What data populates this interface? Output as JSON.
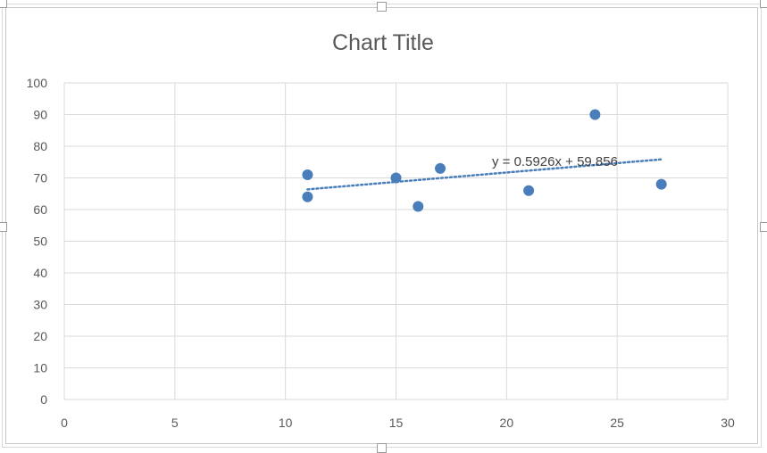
{
  "chart_data": {
    "type": "scatter",
    "title": "Chart Title",
    "xlabel": "",
    "ylabel": "",
    "xlim": [
      0,
      30
    ],
    "ylim": [
      0,
      100
    ],
    "x_ticks": [
      0,
      5,
      10,
      15,
      20,
      25,
      30
    ],
    "y_ticks": [
      0,
      10,
      20,
      30,
      40,
      50,
      60,
      70,
      80,
      90,
      100
    ],
    "grid": true,
    "legend": "none",
    "series": [
      {
        "color": "#4a7ebb",
        "points": [
          {
            "x": 11,
            "y": 71
          },
          {
            "x": 11,
            "y": 64
          },
          {
            "x": 15,
            "y": 70
          },
          {
            "x": 16,
            "y": 61
          },
          {
            "x": 17,
            "y": 73
          },
          {
            "x": 21,
            "y": 66
          },
          {
            "x": 24,
            "y": 90
          },
          {
            "x": 27,
            "y": 68
          }
        ]
      }
    ],
    "trendline": {
      "type": "linear",
      "slope": 0.5926,
      "intercept": 59.856,
      "x_range": [
        11,
        27
      ],
      "equation_label": "y = 0.5926x + 59.856",
      "color": "#4a7ebb",
      "style": "dotted"
    }
  }
}
